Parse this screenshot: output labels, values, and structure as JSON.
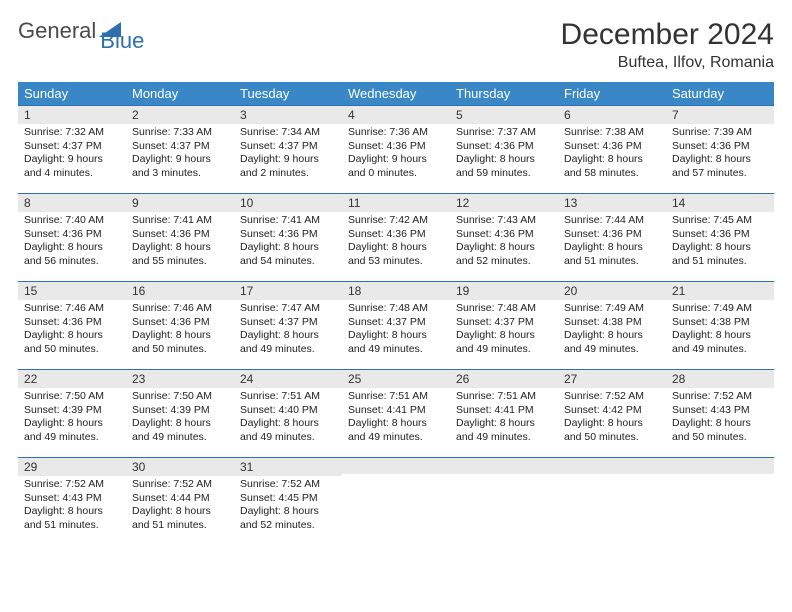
{
  "logo": {
    "text1": "General",
    "text2": "Blue"
  },
  "header": {
    "month_title": "December 2024",
    "location": "Buftea, Ilfov, Romania"
  },
  "colors": {
    "header_bg": "#3a87c7",
    "daynum_bg": "#e9e9e9",
    "border": "#2f6fae",
    "logo_blue": "#2f6fae",
    "logo_gray": "#4a4a4a"
  },
  "weekdays": [
    "Sunday",
    "Monday",
    "Tuesday",
    "Wednesday",
    "Thursday",
    "Friday",
    "Saturday"
  ],
  "weeks": [
    [
      {
        "n": "1",
        "sr": "Sunrise: 7:32 AM",
        "ss": "Sunset: 4:37 PM",
        "d1": "Daylight: 9 hours",
        "d2": "and 4 minutes."
      },
      {
        "n": "2",
        "sr": "Sunrise: 7:33 AM",
        "ss": "Sunset: 4:37 PM",
        "d1": "Daylight: 9 hours",
        "d2": "and 3 minutes."
      },
      {
        "n": "3",
        "sr": "Sunrise: 7:34 AM",
        "ss": "Sunset: 4:37 PM",
        "d1": "Daylight: 9 hours",
        "d2": "and 2 minutes."
      },
      {
        "n": "4",
        "sr": "Sunrise: 7:36 AM",
        "ss": "Sunset: 4:36 PM",
        "d1": "Daylight: 9 hours",
        "d2": "and 0 minutes."
      },
      {
        "n": "5",
        "sr": "Sunrise: 7:37 AM",
        "ss": "Sunset: 4:36 PM",
        "d1": "Daylight: 8 hours",
        "d2": "and 59 minutes."
      },
      {
        "n": "6",
        "sr": "Sunrise: 7:38 AM",
        "ss": "Sunset: 4:36 PM",
        "d1": "Daylight: 8 hours",
        "d2": "and 58 minutes."
      },
      {
        "n": "7",
        "sr": "Sunrise: 7:39 AM",
        "ss": "Sunset: 4:36 PM",
        "d1": "Daylight: 8 hours",
        "d2": "and 57 minutes."
      }
    ],
    [
      {
        "n": "8",
        "sr": "Sunrise: 7:40 AM",
        "ss": "Sunset: 4:36 PM",
        "d1": "Daylight: 8 hours",
        "d2": "and 56 minutes."
      },
      {
        "n": "9",
        "sr": "Sunrise: 7:41 AM",
        "ss": "Sunset: 4:36 PM",
        "d1": "Daylight: 8 hours",
        "d2": "and 55 minutes."
      },
      {
        "n": "10",
        "sr": "Sunrise: 7:41 AM",
        "ss": "Sunset: 4:36 PM",
        "d1": "Daylight: 8 hours",
        "d2": "and 54 minutes."
      },
      {
        "n": "11",
        "sr": "Sunrise: 7:42 AM",
        "ss": "Sunset: 4:36 PM",
        "d1": "Daylight: 8 hours",
        "d2": "and 53 minutes."
      },
      {
        "n": "12",
        "sr": "Sunrise: 7:43 AM",
        "ss": "Sunset: 4:36 PM",
        "d1": "Daylight: 8 hours",
        "d2": "and 52 minutes."
      },
      {
        "n": "13",
        "sr": "Sunrise: 7:44 AM",
        "ss": "Sunset: 4:36 PM",
        "d1": "Daylight: 8 hours",
        "d2": "and 51 minutes."
      },
      {
        "n": "14",
        "sr": "Sunrise: 7:45 AM",
        "ss": "Sunset: 4:36 PM",
        "d1": "Daylight: 8 hours",
        "d2": "and 51 minutes."
      }
    ],
    [
      {
        "n": "15",
        "sr": "Sunrise: 7:46 AM",
        "ss": "Sunset: 4:36 PM",
        "d1": "Daylight: 8 hours",
        "d2": "and 50 minutes."
      },
      {
        "n": "16",
        "sr": "Sunrise: 7:46 AM",
        "ss": "Sunset: 4:36 PM",
        "d1": "Daylight: 8 hours",
        "d2": "and 50 minutes."
      },
      {
        "n": "17",
        "sr": "Sunrise: 7:47 AM",
        "ss": "Sunset: 4:37 PM",
        "d1": "Daylight: 8 hours",
        "d2": "and 49 minutes."
      },
      {
        "n": "18",
        "sr": "Sunrise: 7:48 AM",
        "ss": "Sunset: 4:37 PM",
        "d1": "Daylight: 8 hours",
        "d2": "and 49 minutes."
      },
      {
        "n": "19",
        "sr": "Sunrise: 7:48 AM",
        "ss": "Sunset: 4:37 PM",
        "d1": "Daylight: 8 hours",
        "d2": "and 49 minutes."
      },
      {
        "n": "20",
        "sr": "Sunrise: 7:49 AM",
        "ss": "Sunset: 4:38 PM",
        "d1": "Daylight: 8 hours",
        "d2": "and 49 minutes."
      },
      {
        "n": "21",
        "sr": "Sunrise: 7:49 AM",
        "ss": "Sunset: 4:38 PM",
        "d1": "Daylight: 8 hours",
        "d2": "and 49 minutes."
      }
    ],
    [
      {
        "n": "22",
        "sr": "Sunrise: 7:50 AM",
        "ss": "Sunset: 4:39 PM",
        "d1": "Daylight: 8 hours",
        "d2": "and 49 minutes."
      },
      {
        "n": "23",
        "sr": "Sunrise: 7:50 AM",
        "ss": "Sunset: 4:39 PM",
        "d1": "Daylight: 8 hours",
        "d2": "and 49 minutes."
      },
      {
        "n": "24",
        "sr": "Sunrise: 7:51 AM",
        "ss": "Sunset: 4:40 PM",
        "d1": "Daylight: 8 hours",
        "d2": "and 49 minutes."
      },
      {
        "n": "25",
        "sr": "Sunrise: 7:51 AM",
        "ss": "Sunset: 4:41 PM",
        "d1": "Daylight: 8 hours",
        "d2": "and 49 minutes."
      },
      {
        "n": "26",
        "sr": "Sunrise: 7:51 AM",
        "ss": "Sunset: 4:41 PM",
        "d1": "Daylight: 8 hours",
        "d2": "and 49 minutes."
      },
      {
        "n": "27",
        "sr": "Sunrise: 7:52 AM",
        "ss": "Sunset: 4:42 PM",
        "d1": "Daylight: 8 hours",
        "d2": "and 50 minutes."
      },
      {
        "n": "28",
        "sr": "Sunrise: 7:52 AM",
        "ss": "Sunset: 4:43 PM",
        "d1": "Daylight: 8 hours",
        "d2": "and 50 minutes."
      }
    ],
    [
      {
        "n": "29",
        "sr": "Sunrise: 7:52 AM",
        "ss": "Sunset: 4:43 PM",
        "d1": "Daylight: 8 hours",
        "d2": "and 51 minutes."
      },
      {
        "n": "30",
        "sr": "Sunrise: 7:52 AM",
        "ss": "Sunset: 4:44 PM",
        "d1": "Daylight: 8 hours",
        "d2": "and 51 minutes."
      },
      {
        "n": "31",
        "sr": "Sunrise: 7:52 AM",
        "ss": "Sunset: 4:45 PM",
        "d1": "Daylight: 8 hours",
        "d2": "and 52 minutes."
      },
      null,
      null,
      null,
      null
    ]
  ]
}
